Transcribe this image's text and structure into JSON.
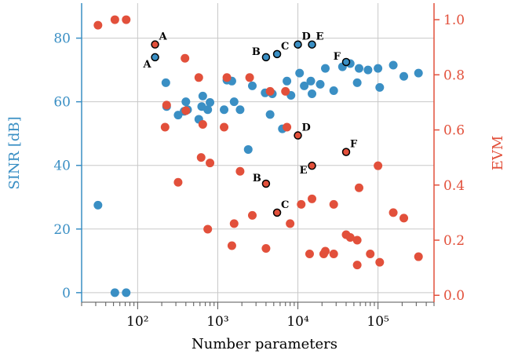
{
  "chart_data": {
    "type": "scatter",
    "xlabel": "Number parameters",
    "ylabel_left": "SINR [dB]",
    "ylabel_right": "EVM",
    "x_scale": "log",
    "xlim": [
      20,
      500000
    ],
    "ylim_left": [
      -3,
      91
    ],
    "ylim_right": [
      -0.025,
      1.06
    ],
    "x_major_ticks": [
      {
        "value": 100,
        "label": "10²"
      },
      {
        "value": 1000,
        "label": "10³"
      },
      {
        "value": 10000,
        "label": "10⁴"
      },
      {
        "value": 100000,
        "label": "10⁵"
      }
    ],
    "y_left_ticks": [
      "0",
      "20",
      "40",
      "60",
      "80"
    ],
    "y_right_ticks": [
      "0.0",
      "0.2",
      "0.4",
      "0.6",
      "0.8",
      "1.0"
    ],
    "colors": {
      "sinr": "#3a8fc4",
      "evm": "#e2503b",
      "grid": "#c8c8c8",
      "axis": "#555555"
    },
    "grid": true,
    "series": [
      {
        "name": "SINR [dB]",
        "axis": "left",
        "points": [
          [
            32,
            27.5
          ],
          [
            52,
            0
          ],
          [
            72,
            0
          ],
          [
            225,
            66
          ],
          [
            230,
            58.5
          ],
          [
            320,
            55.8
          ],
          [
            380,
            57
          ],
          [
            400,
            60
          ],
          [
            420,
            57.5
          ],
          [
            580,
            54.5
          ],
          [
            630,
            58.5
          ],
          [
            650,
            61.8
          ],
          [
            750,
            57.5
          ],
          [
            800,
            59.8
          ],
          [
            1200,
            57.5
          ],
          [
            1300,
            66.8
          ],
          [
            1500,
            66.5
          ],
          [
            1600,
            60
          ],
          [
            1900,
            57.5
          ],
          [
            2400,
            45
          ],
          [
            2700,
            65
          ],
          [
            3900,
            62.8
          ],
          [
            4500,
            56
          ],
          [
            4800,
            62.5
          ],
          [
            6400,
            51.5
          ],
          [
            7300,
            66.5
          ],
          [
            8200,
            62
          ],
          [
            10500,
            69
          ],
          [
            12000,
            65
          ],
          [
            14500,
            66.5
          ],
          [
            15000,
            62.5
          ],
          [
            19000,
            65.5
          ],
          [
            22000,
            70.5
          ],
          [
            28000,
            63.5
          ],
          [
            36000,
            71
          ],
          [
            45000,
            72
          ],
          [
            55000,
            66
          ],
          [
            58000,
            70.5
          ],
          [
            75000,
            70
          ],
          [
            100000,
            70.5
          ],
          [
            105000,
            64.5
          ],
          [
            155000,
            71.5
          ],
          [
            210000,
            68
          ],
          [
            320000,
            69
          ]
        ]
      },
      {
        "name": "EVM",
        "axis": "right",
        "points": [
          [
            32,
            0.98
          ],
          [
            52,
            1.0
          ],
          [
            72,
            1.0
          ],
          [
            220,
            0.61
          ],
          [
            230,
            0.69
          ],
          [
            320,
            0.41
          ],
          [
            390,
            0.86
          ],
          [
            400,
            0.67
          ],
          [
            580,
            0.79
          ],
          [
            620,
            0.5
          ],
          [
            650,
            0.62
          ],
          [
            750,
            0.24
          ],
          [
            800,
            0.48
          ],
          [
            1200,
            0.61
          ],
          [
            1300,
            0.79
          ],
          [
            1500,
            0.18
          ],
          [
            1600,
            0.26
          ],
          [
            1900,
            0.45
          ],
          [
            2500,
            0.79
          ],
          [
            2700,
            0.29
          ],
          [
            4000,
            0.17
          ],
          [
            4500,
            0.74
          ],
          [
            7000,
            0.74
          ],
          [
            7300,
            0.61
          ],
          [
            8000,
            0.26
          ],
          [
            11000,
            0.33
          ],
          [
            14000,
            0.15
          ],
          [
            15000,
            0.35
          ],
          [
            21000,
            0.15
          ],
          [
            22000,
            0.16
          ],
          [
            28000,
            0.33
          ],
          [
            28000,
            0.15
          ],
          [
            40000,
            0.22
          ],
          [
            45000,
            0.21
          ],
          [
            55000,
            0.11
          ],
          [
            55000,
            0.2
          ],
          [
            58000,
            0.39
          ],
          [
            80000,
            0.15
          ],
          [
            100000,
            0.47
          ],
          [
            105000,
            0.12
          ],
          [
            155000,
            0.3
          ],
          [
            210000,
            0.28
          ],
          [
            320000,
            0.14
          ]
        ]
      }
    ],
    "annotated_points": [
      {
        "label": "A",
        "axis": "left",
        "x": 165,
        "y": 74
      },
      {
        "label": "A",
        "axis": "right",
        "x": 165,
        "y": 0.91
      },
      {
        "label": "B",
        "axis": "left",
        "x": 4000,
        "y": 74
      },
      {
        "label": "B",
        "axis": "right",
        "x": 4000,
        "y": 0.405
      },
      {
        "label": "C",
        "axis": "left",
        "x": 5500,
        "y": 75
      },
      {
        "label": "C",
        "axis": "right",
        "x": 5500,
        "y": 0.3
      },
      {
        "label": "D",
        "axis": "left",
        "x": 10000,
        "y": 78
      },
      {
        "label": "D",
        "axis": "right",
        "x": 10000,
        "y": 0.58
      },
      {
        "label": "E",
        "axis": "left",
        "x": 15000,
        "y": 78
      },
      {
        "label": "E",
        "axis": "right",
        "x": 15000,
        "y": 0.47
      },
      {
        "label": "F",
        "axis": "left",
        "x": 40000,
        "y": 72.5
      },
      {
        "label": "F",
        "axis": "right",
        "x": 40000,
        "y": 0.52
      }
    ]
  }
}
